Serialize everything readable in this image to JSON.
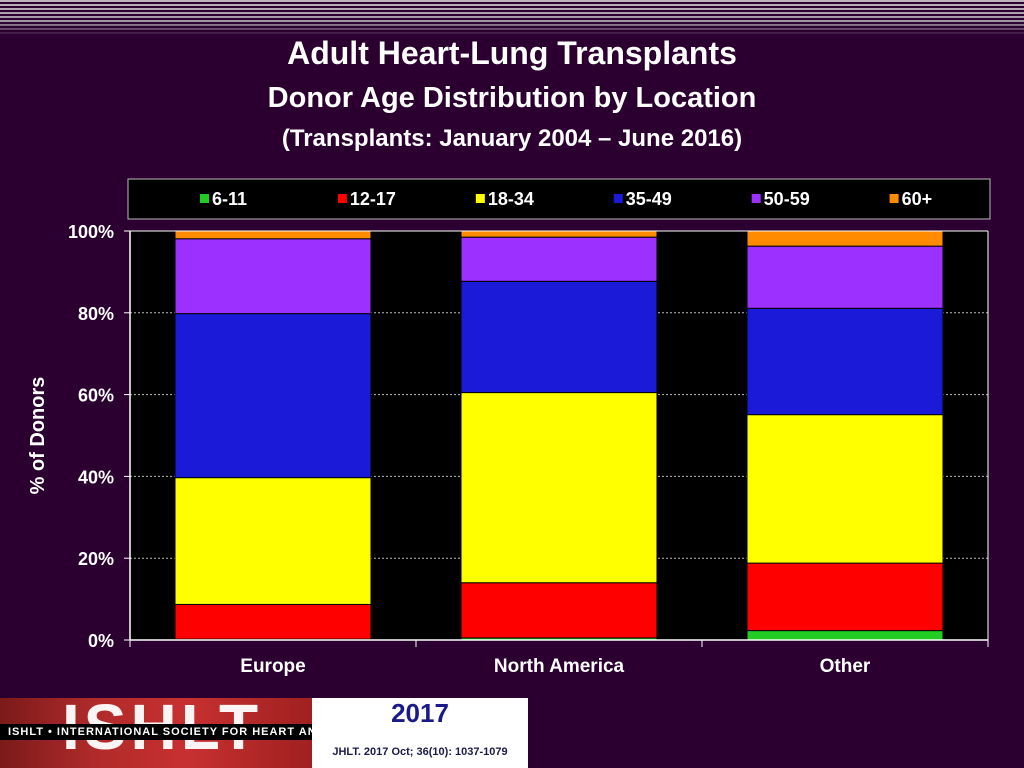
{
  "title": "Adult Heart-Lung Transplants",
  "subtitle": "Donor Age Distribution by Location",
  "subtitle2": "(Transplants: January 2004 – June 2016)",
  "footer": {
    "logo_text": "ISHLT",
    "org": "ISHLT • INTERNATIONAL SOCIETY FOR HEART AND LUNG TRANSPLANTATION",
    "year": "2017",
    "citation": "JHLT. 2017 Oct; 36(10): 1037-1079"
  },
  "colors": {
    "6-11": "#22cc22",
    "12-17": "#ff0000",
    "18-34": "#ffff00",
    "35-49": "#1a1ad8",
    "50-59": "#9b30ff",
    "60+": "#ff8c00"
  },
  "chart_data": {
    "type": "bar",
    "stacked": true,
    "categories": [
      "Europe",
      "North America",
      "Other"
    ],
    "series": [
      {
        "name": "6-11",
        "values": [
          0.2,
          0.5,
          2.3
        ]
      },
      {
        "name": "12-17",
        "values": [
          8.5,
          13.5,
          16.5
        ]
      },
      {
        "name": "18-34",
        "values": [
          31.0,
          46.5,
          36.3
        ]
      },
      {
        "name": "35-49",
        "values": [
          40.1,
          27.2,
          26.0
        ]
      },
      {
        "name": "50-59",
        "values": [
          18.3,
          10.8,
          15.2
        ]
      },
      {
        "name": "60+",
        "values": [
          1.9,
          1.5,
          3.7
        ]
      }
    ],
    "ylabel": "% of Donors",
    "xlabel": "",
    "ylim": [
      0,
      100
    ],
    "yticks": [
      "0%",
      "20%",
      "40%",
      "60%",
      "80%",
      "100%"
    ],
    "grid": true,
    "legend": "top"
  }
}
